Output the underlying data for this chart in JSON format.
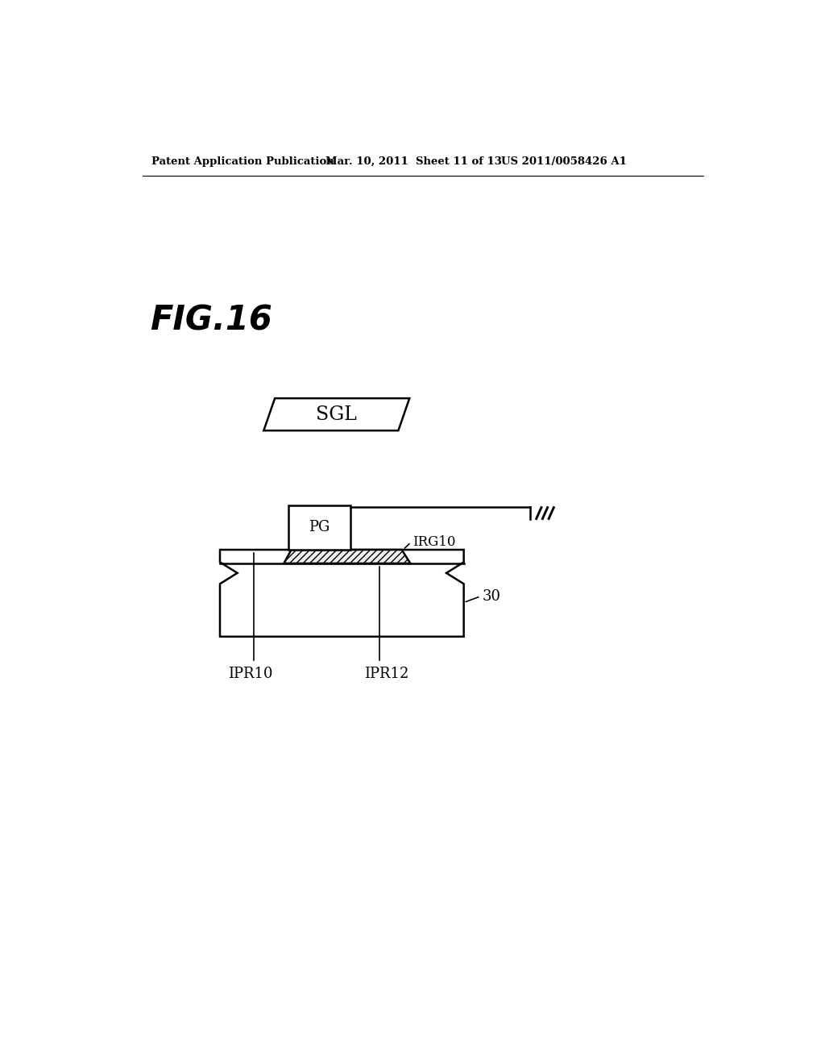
{
  "bg_color": "#ffffff",
  "header_left": "Patent Application Publication",
  "header_mid": "Mar. 10, 2011  Sheet 11 of 13",
  "header_right": "US 2011/0058426 A1",
  "fig_label": "FIG.16",
  "sgl_label": "SGL",
  "pg_label": "PG",
  "irg10_label": "IRG10",
  "ipr10_label": "IPR10",
  "ipr12_label": "IPR12",
  "label_30": "30",
  "line_color": "#000000",
  "lw": 1.8
}
